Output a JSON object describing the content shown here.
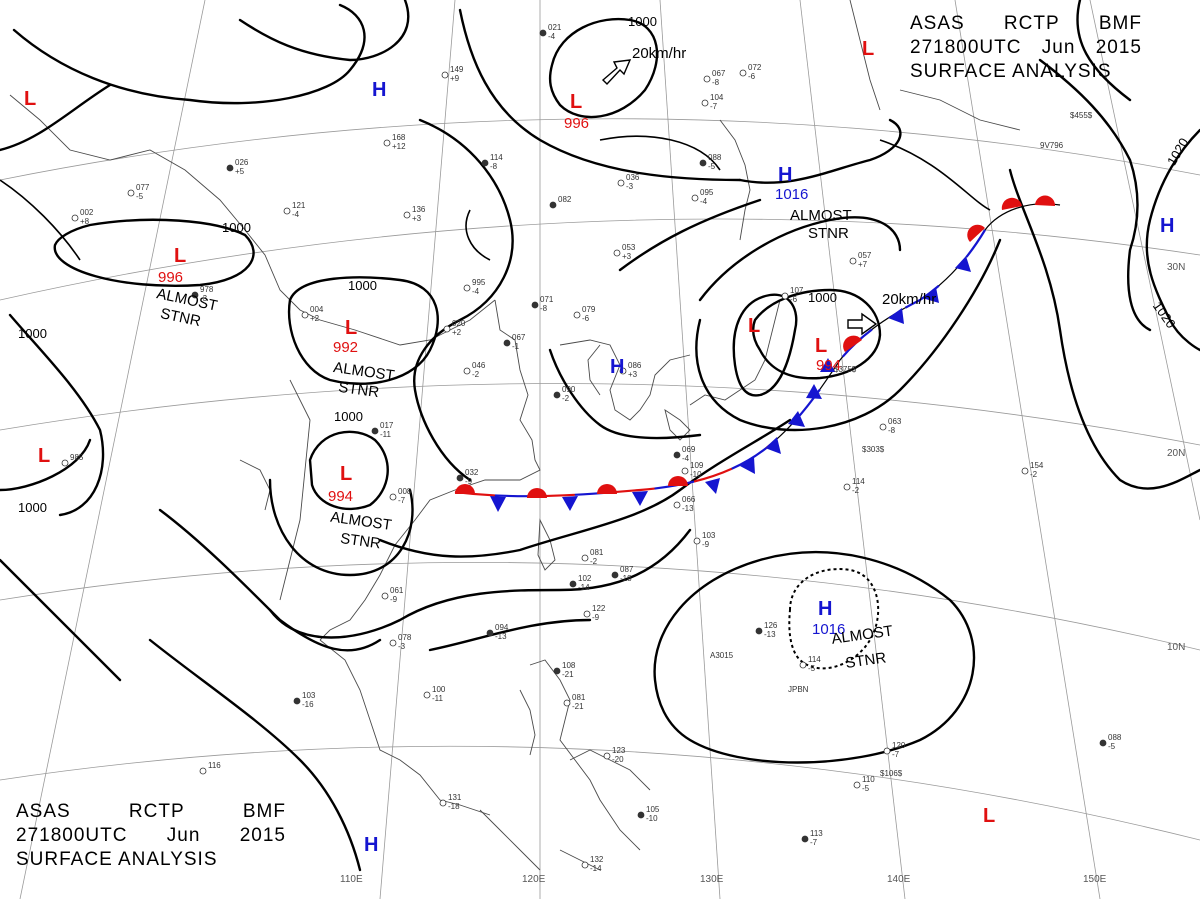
{
  "header": {
    "line1": [
      "ASAS",
      "RCTP",
      "BMF"
    ],
    "line2": [
      "271800UTC",
      "Jun",
      "2015"
    ],
    "line3": "SURFACE ANALYSIS"
  },
  "colors": {
    "high": "#1515d0",
    "low": "#e01010",
    "front_warm": "#e01010",
    "front_cold": "#1515d0",
    "isobar": "#000000",
    "grid": "#9a9a9a"
  },
  "longitudes": [
    "110E",
    "120E",
    "130E",
    "140E",
    "150E"
  ],
  "latitudes": [
    "30N",
    "20N",
    "10N"
  ],
  "isobar_labels": [
    "1000",
    "1000",
    "1000",
    "1000",
    "1000",
    "1000",
    "1000",
    "1000",
    "1020",
    "1020"
  ],
  "pressure_systems": [
    {
      "type": "H",
      "value": ""
    },
    {
      "type": "H",
      "value": "1016"
    },
    {
      "type": "H",
      "value": ""
    },
    {
      "type": "H",
      "value": ""
    },
    {
      "type": "H",
      "value": "1016"
    },
    {
      "type": "H",
      "value": ""
    },
    {
      "type": "L",
      "value": ""
    },
    {
      "type": "L",
      "value": "996"
    },
    {
      "type": "L",
      "value": "996"
    },
    {
      "type": "L",
      "value": "992"
    },
    {
      "type": "L",
      "value": "994"
    },
    {
      "type": "L",
      "value": ""
    },
    {
      "type": "L",
      "value": "994"
    },
    {
      "type": "L",
      "value": ""
    },
    {
      "type": "L",
      "value": ""
    },
    {
      "type": "L",
      "value": ""
    }
  ],
  "annotations": {
    "stnr": [
      "ALMOST",
      "STNR"
    ],
    "motion": [
      "20km/hr",
      "20km/hr"
    ]
  },
  "stations": [
    {
      "num": "021",
      "sub": "-4"
    },
    {
      "num": "149",
      "sub": "+9"
    },
    {
      "num": "168",
      "sub": "+12"
    },
    {
      "num": "114",
      "sub": "-8"
    },
    {
      "num": "121",
      "sub": "-4"
    },
    {
      "num": "136",
      "sub": "+3"
    },
    {
      "num": "026",
      "sub": "+5"
    },
    {
      "num": "077",
      "sub": "-5"
    },
    {
      "num": "002",
      "sub": "+8"
    },
    {
      "num": "978",
      "sub": "-3"
    },
    {
      "num": "004",
      "sub": "+2"
    },
    {
      "num": "995",
      "sub": "-4"
    },
    {
      "num": "071",
      "sub": "-8"
    },
    {
      "num": "079",
      "sub": "-6"
    },
    {
      "num": "053",
      "sub": "+3"
    },
    {
      "num": "067",
      "sub": "-1"
    },
    {
      "num": "020",
      "sub": "+2"
    },
    {
      "num": "046",
      "sub": "-2"
    },
    {
      "num": "017",
      "sub": "-11"
    },
    {
      "num": "008",
      "sub": "-7"
    },
    {
      "num": "985",
      "sub": ""
    },
    {
      "num": "032",
      "sub": "-9"
    },
    {
      "num": "061",
      "sub": "-9"
    },
    {
      "num": "081",
      "sub": "-2"
    },
    {
      "num": "087",
      "sub": "-18"
    },
    {
      "num": "066",
      "sub": "-13"
    },
    {
      "num": "103",
      "sub": "-9"
    },
    {
      "num": "094",
      "sub": "-13"
    },
    {
      "num": "078",
      "sub": "-3"
    },
    {
      "num": "100",
      "sub": "-11"
    },
    {
      "num": "103",
      "sub": "-16"
    },
    {
      "num": "116",
      "sub": ""
    },
    {
      "num": "131",
      "sub": "-18"
    },
    {
      "num": "108",
      "sub": "-21"
    },
    {
      "num": "081",
      "sub": "-21"
    },
    {
      "num": "123",
      "sub": "-20"
    },
    {
      "num": "105",
      "sub": "-10"
    },
    {
      "num": "132",
      "sub": "-14"
    },
    {
      "num": "114",
      "sub": "-2"
    },
    {
      "num": "126",
      "sub": "-13"
    },
    {
      "num": "154",
      "sub": "-2"
    },
    {
      "num": "063",
      "sub": "-8"
    },
    {
      "num": "088",
      "sub": "-5"
    },
    {
      "num": "120",
      "sub": "-7"
    },
    {
      "num": "110",
      "sub": "-5"
    },
    {
      "num": "113",
      "sub": "-7"
    },
    {
      "num": "095",
      "sub": "-4"
    },
    {
      "num": "036",
      "sub": "-3"
    },
    {
      "num": "088",
      "sub": "-5"
    },
    {
      "num": "057",
      "sub": "+7"
    },
    {
      "num": "067",
      "sub": "-8"
    },
    {
      "num": "090",
      "sub": "-2"
    },
    {
      "num": "086",
      "sub": "+3"
    },
    {
      "num": "109",
      "sub": "-10"
    },
    {
      "num": "069",
      "sub": "-4"
    },
    {
      "num": "072",
      "sub": "-6"
    },
    {
      "num": "107",
      "sub": "-6"
    },
    {
      "num": "082",
      "sub": ""
    },
    {
      "num": "114",
      "sub": "-5"
    },
    {
      "num": "122",
      "sub": "-9"
    },
    {
      "num": "102",
      "sub": "-14"
    },
    {
      "num": "104",
      "sub": "-7"
    }
  ],
  "station_tags": [
    "A3015",
    "JPBN",
    "9V796",
    "$375$",
    "$303$",
    "$106$",
    "$455$"
  ]
}
